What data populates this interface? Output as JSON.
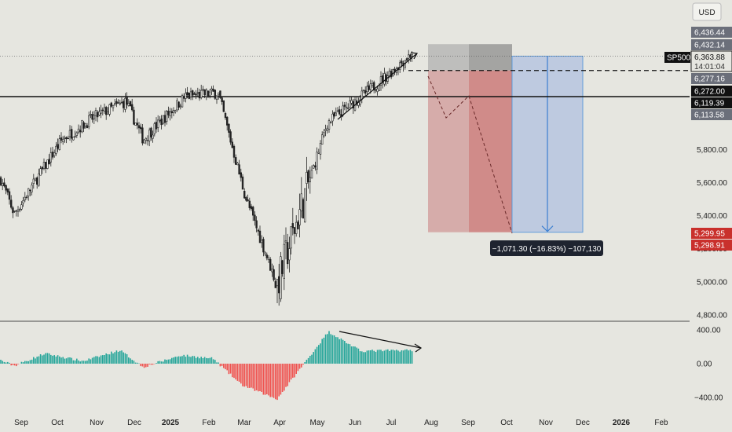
{
  "chart_data": {
    "type": "candlestick",
    "symbol": "SP500",
    "currency": "USD",
    "last_price_label": "6,363.88",
    "countdown": "14:01:04",
    "price_axis_ticks": [
      "4,800.00",
      "5,000.00",
      "5,200.00",
      "5,400.00",
      "5,600.00",
      "5,800.00"
    ],
    "price_axis_range": [
      4780,
      6450
    ],
    "time_axis_labels": [
      "Sep",
      "Oct",
      "Nov",
      "Dec",
      "2025",
      "Feb",
      "Mar",
      "Apr",
      "May",
      "Jun",
      "Jul",
      "Aug",
      "Sep",
      "Oct",
      "Nov",
      "Dec",
      "2026",
      "Feb"
    ],
    "price_tags": [
      {
        "label": "6,436.44",
        "value": 6436.44,
        "color": "#6b6f7a"
      },
      {
        "label": "6,432.14",
        "value": 6432.14,
        "color": "#6b6f7a"
      },
      {
        "label": "6,277.16",
        "value": 6277.16,
        "color": "#6b6f7a"
      },
      {
        "label": "6,272.00",
        "value": 6272.0,
        "color": "#111111"
      },
      {
        "label": "6,119.39",
        "value": 6119.39,
        "color": "#111111"
      },
      {
        "label": "6,113.58",
        "value": 6113.58,
        "color": "#6b6f7a"
      },
      {
        "label": "5,299.95",
        "value": 5299.95,
        "color": "#c9302c"
      },
      {
        "label": "5,298.91",
        "value": 5298.91,
        "color": "#c9302c"
      }
    ],
    "key_closes": [
      {
        "date": "2024-08-26",
        "close": 5620
      },
      {
        "date": "2024-09-06",
        "close": 5410
      },
      {
        "date": "2024-10-15",
        "close": 5860
      },
      {
        "date": "2024-11-11",
        "close": 6000
      },
      {
        "date": "2024-12-06",
        "close": 6090
      },
      {
        "date": "2024-12-20",
        "close": 5860
      },
      {
        "date": "2025-01-23",
        "close": 6119
      },
      {
        "date": "2025-02-19",
        "close": 6144
      },
      {
        "date": "2025-03-13",
        "close": 5520
      },
      {
        "date": "2025-04-08",
        "close": 4982
      },
      {
        "date": "2025-05-19",
        "close": 5960
      },
      {
        "date": "2025-06-30",
        "close": 6205
      },
      {
        "date": "2025-07-28",
        "close": 6389
      }
    ],
    "horizontal_levels": [
      {
        "value": 6119.39,
        "style": "solid"
      },
      {
        "value": 6277.16,
        "style": "dashed"
      }
    ],
    "position_tool": {
      "stop_range": [
        6277.16,
        6436.44
      ],
      "target_price": 5299.95,
      "measure_label": "−1,071.30 (−16.83%) −107,130"
    },
    "oscillator": {
      "axis_ticks": [
        "400.00",
        "0.00",
        "−400.00"
      ],
      "axis_range": [
        -440,
        440
      ],
      "series": [
        {
          "date": "2024-08-26",
          "value": 40
        },
        {
          "date": "2024-09-06",
          "value": -25
        },
        {
          "date": "2024-10-01",
          "value": 120
        },
        {
          "date": "2024-11-01",
          "value": 30
        },
        {
          "date": "2024-12-01",
          "value": 160
        },
        {
          "date": "2024-12-20",
          "value": -40
        },
        {
          "date": "2025-01-20",
          "value": 100
        },
        {
          "date": "2025-02-15",
          "value": 60
        },
        {
          "date": "2025-03-10",
          "value": -250
        },
        {
          "date": "2025-04-08",
          "value": -420
        },
        {
          "date": "2025-05-20",
          "value": 380
        },
        {
          "date": "2025-06-15",
          "value": 150
        },
        {
          "date": "2025-07-28",
          "value": 160
        }
      ]
    },
    "colors": {
      "up": "#26a69a",
      "down": "#ef5350",
      "target_zone": "#b8c6e0",
      "stop_zone_light": "#d09898",
      "stop_zone_dark": "#c86c6c",
      "axis_label_bg": "#1f2430"
    }
  }
}
